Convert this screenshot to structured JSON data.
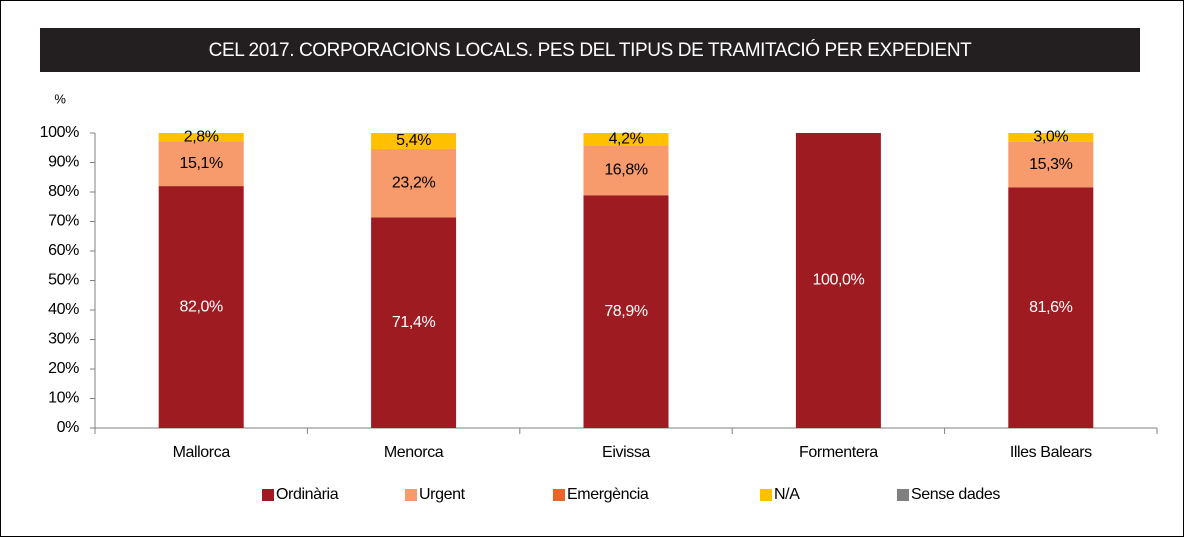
{
  "chart_data": {
    "type": "stacked_bar",
    "title": "CEL 2017. CORPORACIONS LOCALS. PES DEL TIPUS DE TRAMITACIÓ PER EXPEDIENT",
    "y_label": "%",
    "categories": [
      "Mallorca",
      "Menorca",
      "Eivissa",
      "Formentera",
      "Illes Balears"
    ],
    "series": [
      {
        "name": "Ordinària",
        "color": "#9e1b22",
        "values": [
          82.0,
          71.4,
          78.9,
          100.0,
          81.6
        ],
        "value_labels": [
          "82,0%",
          "71,4%",
          "78,9%",
          "100,0%",
          "81,6%"
        ]
      },
      {
        "name": "Urgent",
        "color": "#f79a6c",
        "values": [
          15.1,
          23.2,
          16.8,
          0,
          15.3
        ],
        "value_labels": [
          "15,1%",
          "23,2%",
          "16,8%",
          null,
          "15,3%"
        ]
      },
      {
        "name": "Emergència",
        "color": "#e8662a",
        "values": [
          0.1,
          0,
          0.1,
          0,
          0.1
        ]
      },
      {
        "name": "N/A",
        "color": "#ffc000",
        "values": [
          2.8,
          5.4,
          4.2,
          0,
          3.0
        ],
        "value_labels": [
          "2,8%",
          "5,4%",
          "4,2%",
          null,
          "3,0%"
        ]
      },
      {
        "name": "Sense dades",
        "color": "#808080",
        "values": [
          0,
          0,
          0,
          0,
          0
        ]
      }
    ],
    "ylim": [
      0,
      100
    ],
    "yticks": [
      {
        "value": 0,
        "label": "0%"
      },
      {
        "value": 10,
        "label": "10%"
      },
      {
        "value": 20,
        "label": "20%"
      },
      {
        "value": 30,
        "label": "30%"
      },
      {
        "value": 40,
        "label": "40%"
      },
      {
        "value": 50,
        "label": "50%"
      },
      {
        "value": 60,
        "label": "60%"
      },
      {
        "value": 70,
        "label": "70%"
      },
      {
        "value": 80,
        "label": "80%"
      },
      {
        "value": 90,
        "label": "90%"
      },
      {
        "value": 100,
        "label": "100%"
      }
    ],
    "grid": false,
    "legend": "bottom"
  }
}
